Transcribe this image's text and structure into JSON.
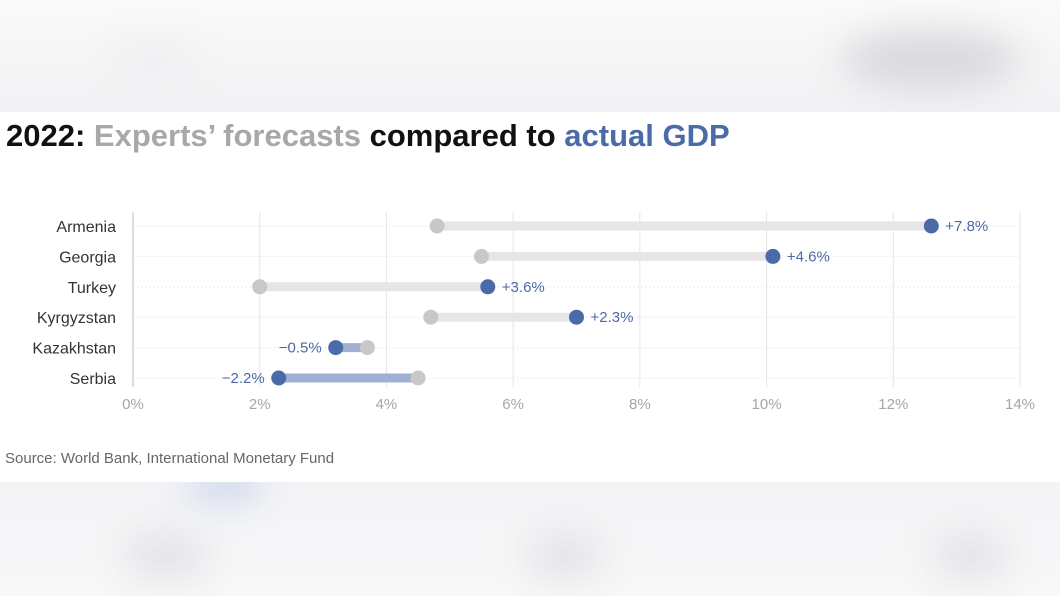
{
  "title": {
    "part1": "2022: ",
    "forecast_word": "Experts’ forecasts",
    "middle": " compared to ",
    "actual_word": "actual GDP"
  },
  "source": "Source: World Bank, International Monetary Fund",
  "colors": {
    "forecast": "#c8c8c8",
    "actual": "#4a6aa8",
    "bar_neutral": "#e6e6e6",
    "bar_negative": "#9fb0d2"
  },
  "chart_data": {
    "type": "dot-plot",
    "title": "2022: Experts’ forecasts compared to actual GDP",
    "xlim": [
      0,
      14
    ],
    "x_ticks": [
      "0%",
      "2%",
      "4%",
      "6%",
      "8%",
      "10%",
      "12%",
      "14%"
    ],
    "grid": true,
    "categories": [
      "Armenia",
      "Georgia",
      "Turkey",
      "Kyrgyzstan",
      "Kazakhstan",
      "Serbia"
    ],
    "series": [
      {
        "name": "Experts’ forecasts",
        "values": [
          4.8,
          5.5,
          2.0,
          4.7,
          3.7,
          4.5
        ]
      },
      {
        "name": "actual GDP",
        "values": [
          12.6,
          10.1,
          5.6,
          7.0,
          3.2,
          2.3
        ]
      }
    ],
    "labels": [
      "+7.8%",
      "+4.6%",
      "+3.6%",
      "+2.3%",
      "−0.5%",
      "−2.2%"
    ]
  }
}
